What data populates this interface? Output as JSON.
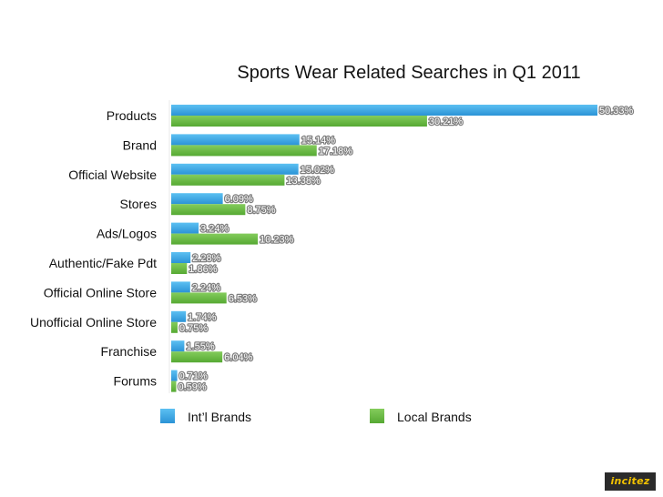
{
  "chart_data": {
    "type": "bar",
    "orientation": "horizontal",
    "title": "Sports Wear Related Searches in Q1 2011",
    "categories": [
      "Products",
      "Brand",
      "Official Website",
      "Stores",
      "Ads/Logos",
      "Authentic/Fake Pdt",
      "Official Online Store",
      "Unofficial Online Store",
      "Franchise",
      "Forums"
    ],
    "series": [
      {
        "name": "Int’l Brands",
        "color": "#3aa6e4",
        "values": [
          50.33,
          15.14,
          15.02,
          6.09,
          3.24,
          2.28,
          2.24,
          1.74,
          1.55,
          0.71
        ],
        "labels": [
          "50.33%",
          "15.14%",
          "15.02%",
          "6.09%",
          "3.24%",
          "2.28%",
          "2.24%",
          "1.74%",
          "1.55%",
          "0.71%"
        ]
      },
      {
        "name": "Local Brands",
        "color": "#6cbd45",
        "values": [
          30.21,
          17.18,
          13.38,
          8.75,
          10.23,
          1.86,
          6.53,
          0.75,
          6.04,
          0.59
        ],
        "labels": [
          "30.21%",
          "17.18%",
          "13.38%",
          "8.75%",
          "10.23%",
          "1.86%",
          "6.53%",
          "0.75%",
          "6.04%",
          "0.59%"
        ]
      }
    ],
    "xlabel": "",
    "ylabel": "",
    "xlim": [
      0,
      50.33
    ],
    "grid": false,
    "legend": "bottom"
  },
  "credit": "incitez"
}
